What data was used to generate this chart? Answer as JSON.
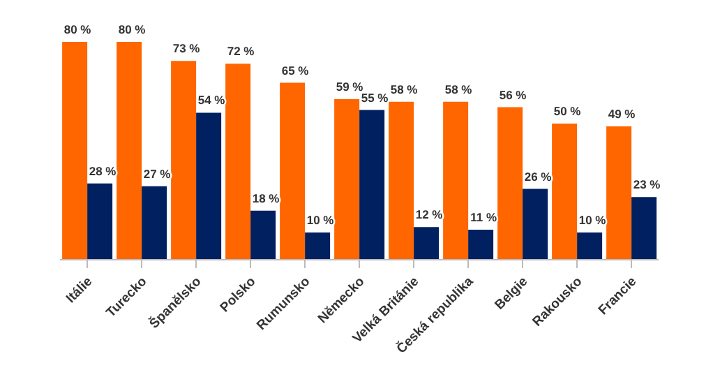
{
  "chart_data": {
    "type": "bar",
    "categories": [
      "Itálie",
      "Turecko",
      "Španělsko",
      "Polsko",
      "Rumunsko",
      "Německo",
      "Velká Británie",
      "Česká republika",
      "Belgie",
      "Rakousko",
      "Francie"
    ],
    "series": [
      {
        "color": "#ff6600",
        "values": [
          80,
          80,
          73,
          72,
          65,
          59,
          58,
          58,
          56,
          50,
          49
        ],
        "value_labels": [
          "80 %",
          "80 %",
          "73 %",
          "72 %",
          "65 %",
          "59 %",
          "58 %",
          "58 %",
          "56 %",
          "50 %",
          "49 %"
        ]
      },
      {
        "color": "#002060",
        "values": [
          28,
          27,
          54,
          18,
          10,
          55,
          12,
          11,
          26,
          10,
          23
        ],
        "value_labels": [
          "28 %",
          "27 %",
          "54 %",
          "18 %",
          "10 %",
          "55 %",
          "12 %",
          "11 %",
          "26 %",
          "10 %",
          "23 %"
        ]
      }
    ],
    "grid": false,
    "legend": false
  }
}
